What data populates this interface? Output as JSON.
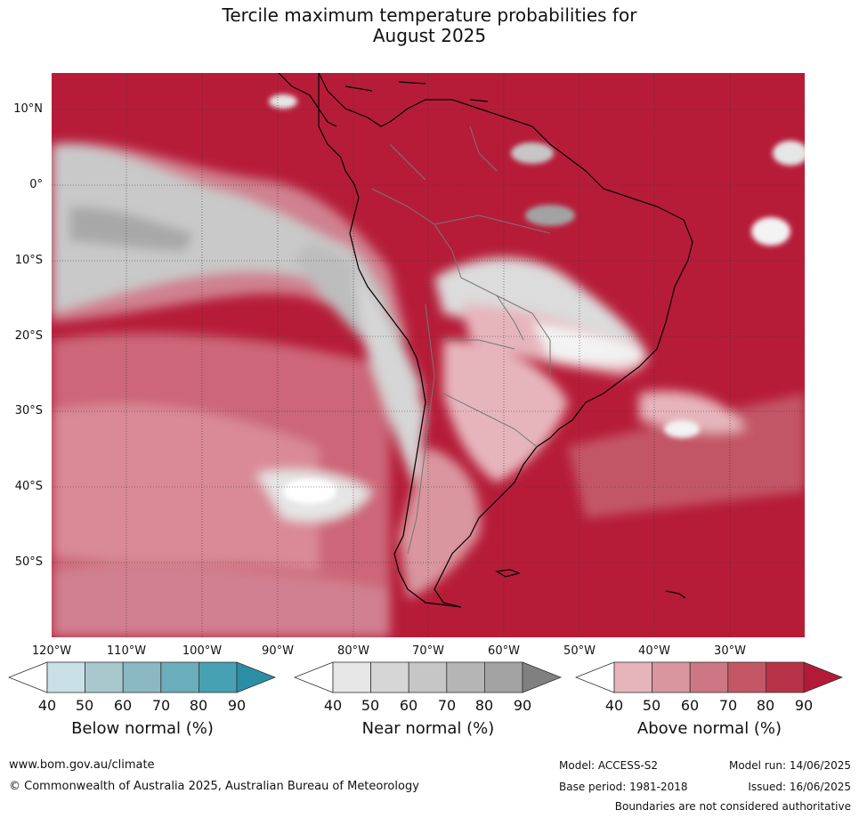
{
  "title_line1": "Tercile maximum temperature probabilities for",
  "title_line2": "August 2025",
  "lat_labels": [
    "10°N",
    "0°",
    "10°S",
    "20°S",
    "30°S",
    "40°S",
    "50°S"
  ],
  "lon_labels": [
    "120°W",
    "110°W",
    "100°W",
    "90°W",
    "80°W",
    "70°W",
    "60°W",
    "50°W",
    "40°W",
    "30°W"
  ],
  "colorbars": [
    {
      "title": "Below normal (%)",
      "ticks": [
        "40",
        "50",
        "60",
        "70",
        "80",
        "90"
      ],
      "colors": [
        "#ffffff",
        "#c9e0e6",
        "#a8c8ce",
        "#8bb8c3",
        "#6aadbb",
        "#46a1b3",
        "#2a8fa5"
      ]
    },
    {
      "title": "Near normal (%)",
      "ticks": [
        "40",
        "50",
        "60",
        "70",
        "80",
        "90"
      ],
      "colors": [
        "#ffffff",
        "#e6e6e6",
        "#d6d6d6",
        "#c6c6c6",
        "#b5b5b5",
        "#a3a3a3",
        "#808080"
      ]
    },
    {
      "title": "Above normal (%)",
      "ticks": [
        "40",
        "50",
        "60",
        "70",
        "80",
        "90"
      ],
      "colors": [
        "#ffffff",
        "#e6b5bc",
        "#d9969f",
        "#cc7783",
        "#c35766",
        "#b83348",
        "#b31a37"
      ]
    }
  ],
  "footer": {
    "website": "www.bom.gov.au/climate",
    "copyright": "© Commonwealth of Australia 2025, Australian Bureau of Meteorology",
    "model": "Model: ACCESS-S2",
    "base_period": "Base period: 1981-2018",
    "model_run": "Model run: 14/06/2025",
    "issued": "Issued: 16/06/2025",
    "boundaries_note": "Boundaries are not considered authoritative"
  }
}
